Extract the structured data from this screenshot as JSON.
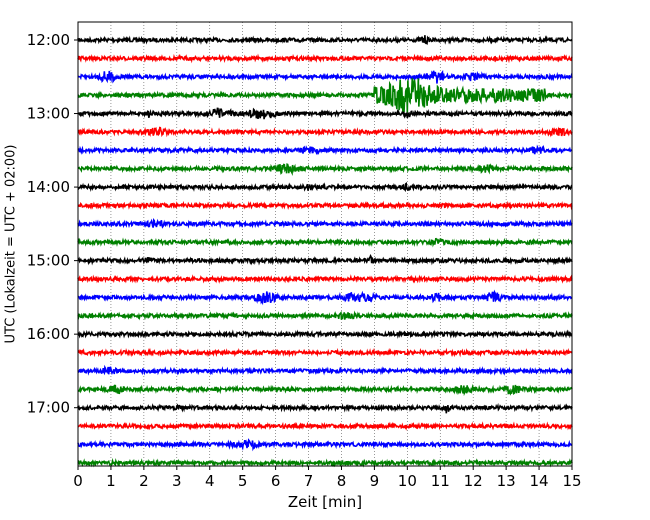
{
  "chart_data": {
    "type": "line",
    "title": "",
    "xlabel": "Zeit  [min]",
    "ylabel": "UTC (Lokalzeit = UTC + 02:00)",
    "xlim": [
      0,
      15
    ],
    "x_ticks": [
      "0",
      "1",
      "2",
      "3",
      "4",
      "5",
      "6",
      "7",
      "8",
      "9",
      "10",
      "11",
      "12",
      "13",
      "14",
      "15"
    ],
    "y_tick_labels": [
      "12:00",
      "13:00",
      "14:00",
      "15:00",
      "16:00",
      "17:00"
    ],
    "grid": "vertical dotted",
    "legend": "none",
    "trace_colors": [
      "#000000",
      "#ff0000",
      "#0000ff",
      "#008000"
    ],
    "traces": [
      {
        "start": "12:00",
        "events": [
          {
            "t": 10.5,
            "amp": 0.35,
            "dur": 0.1
          }
        ]
      },
      {
        "start": "12:15",
        "events": []
      },
      {
        "start": "12:30",
        "events": [
          {
            "t": 0.9,
            "amp": 0.45,
            "dur": 0.3
          },
          {
            "t": 10.9,
            "amp": 0.5,
            "dur": 0.3
          },
          {
            "t": 12.0,
            "amp": 0.3,
            "dur": 0.3
          }
        ]
      },
      {
        "start": "12:45",
        "events": [
          {
            "t": 9.0,
            "amp": 0.7,
            "dur": 5.2
          },
          {
            "t": 10.1,
            "amp": 1.05,
            "dur": 0.8
          }
        ]
      },
      {
        "start": "13:00",
        "events": [
          {
            "t": 2.2,
            "amp": 0.5,
            "dur": 0.05
          },
          {
            "t": 4.3,
            "amp": 0.35,
            "dur": 0.5
          },
          {
            "t": 5.6,
            "amp": 0.4,
            "dur": 0.5
          },
          {
            "t": 10.0,
            "amp": 0.35,
            "dur": 0.1
          }
        ]
      },
      {
        "start": "13:15",
        "events": [
          {
            "t": 2.4,
            "amp": 0.3,
            "dur": 0.3
          },
          {
            "t": 14.6,
            "amp": 0.3,
            "dur": 0.4
          }
        ]
      },
      {
        "start": "13:30",
        "events": [
          {
            "t": 7.0,
            "amp": 0.3,
            "dur": 0.3
          },
          {
            "t": 13.9,
            "amp": 0.25,
            "dur": 0.3
          }
        ]
      },
      {
        "start": "13:45",
        "events": [
          {
            "t": 6.3,
            "amp": 0.35,
            "dur": 0.5
          },
          {
            "t": 12.4,
            "amp": 0.3,
            "dur": 0.3
          }
        ]
      },
      {
        "start": "14:00",
        "events": [
          {
            "t": 7.0,
            "amp": 0.25,
            "dur": 0.1
          },
          {
            "t": 10.0,
            "amp": 0.25,
            "dur": 0.1
          }
        ]
      },
      {
        "start": "14:15",
        "events": []
      },
      {
        "start": "14:30",
        "events": [
          {
            "t": 2.4,
            "amp": 0.3,
            "dur": 0.3
          }
        ]
      },
      {
        "start": "14:45",
        "events": [
          {
            "t": 10.9,
            "amp": 0.25,
            "dur": 0.2
          }
        ]
      },
      {
        "start": "15:00",
        "events": [
          {
            "t": 8.9,
            "amp": 0.45,
            "dur": 0.05
          },
          {
            "t": 2.1,
            "amp": 0.2,
            "dur": 0.2
          }
        ]
      },
      {
        "start": "15:15",
        "events": []
      },
      {
        "start": "15:30",
        "events": [
          {
            "t": 5.7,
            "amp": 0.45,
            "dur": 0.4
          },
          {
            "t": 8.5,
            "amp": 0.35,
            "dur": 0.6
          },
          {
            "t": 12.6,
            "amp": 0.4,
            "dur": 0.3
          },
          {
            "t": 10.9,
            "amp": 0.3,
            "dur": 0.2
          }
        ]
      },
      {
        "start": "15:45",
        "events": [
          {
            "t": 8.1,
            "amp": 0.25,
            "dur": 0.3
          }
        ]
      },
      {
        "start": "16:00",
        "events": []
      },
      {
        "start": "16:15",
        "events": []
      },
      {
        "start": "16:30",
        "events": [
          {
            "t": 1.0,
            "amp": 0.25,
            "dur": 0.4
          }
        ]
      },
      {
        "start": "16:45",
        "events": [
          {
            "t": 1.2,
            "amp": 0.3,
            "dur": 0.3
          },
          {
            "t": 11.7,
            "amp": 0.3,
            "dur": 0.3
          },
          {
            "t": 13.2,
            "amp": 0.35,
            "dur": 0.3
          }
        ]
      },
      {
        "start": "17:00",
        "events": [
          {
            "t": 11.2,
            "amp": 0.55,
            "dur": 0.05
          },
          {
            "t": 3.1,
            "amp": 0.2,
            "dur": 0.1
          }
        ]
      },
      {
        "start": "17:15",
        "events": []
      },
      {
        "start": "17:30",
        "events": [
          {
            "t": 5.1,
            "amp": 0.3,
            "dur": 0.5
          }
        ]
      },
      {
        "start": "17:45",
        "events": []
      }
    ]
  }
}
